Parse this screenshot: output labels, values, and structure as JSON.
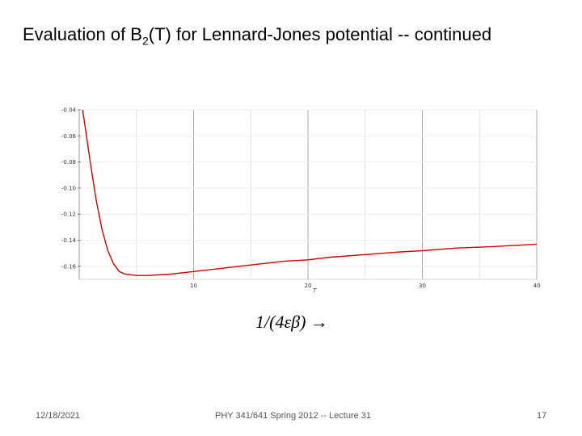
{
  "slide": {
    "title_prefix": "Evaluation of B",
    "title_subscript": "2",
    "title_suffix": "(T) for Lennard-Jones potential -- continued",
    "caption": "1/(4εβ) →",
    "footer_date": "12/18/2021",
    "footer_course": "PHY 341/641 Spring 2012 -- Lecture 31",
    "footer_page": "17"
  },
  "chart_data": {
    "type": "line",
    "xlabel": "T",
    "ylabel": "",
    "xlim": [
      0,
      40
    ],
    "ylim": [
      -0.17,
      -0.04
    ],
    "x_ticks": [
      10,
      20,
      30,
      40
    ],
    "x_tick_labels": [
      "10",
      "20",
      "30",
      "40"
    ],
    "y_ticks": [
      -0.04,
      -0.06,
      -0.08,
      -0.1,
      -0.12,
      -0.14,
      -0.16
    ],
    "y_tick_labels": [
      "-0.04",
      "-0.06",
      "-0.08",
      "-0.10",
      "-0.12",
      "-0.14",
      "-0.16"
    ],
    "grid": true,
    "line_color": "#cc0000",
    "series": [
      {
        "x": [
          0.3,
          0.5,
          0.8,
          1.0,
          1.5,
          2.0,
          2.5,
          3.0,
          3.5,
          4.0,
          5.0,
          6.0,
          8.0,
          10.0,
          12.0,
          15.0,
          18.0,
          20.0,
          22.0,
          25.0,
          28.0,
          30.0,
          33.0,
          36.0,
          40.0
        ],
        "values": [
          -0.04,
          -0.052,
          -0.07,
          -0.082,
          -0.11,
          -0.132,
          -0.148,
          -0.158,
          -0.164,
          -0.166,
          -0.167,
          -0.167,
          -0.166,
          -0.164,
          -0.162,
          -0.159,
          -0.156,
          -0.155,
          -0.153,
          -0.151,
          -0.149,
          -0.148,
          -0.146,
          -0.145,
          -0.143
        ]
      }
    ]
  }
}
